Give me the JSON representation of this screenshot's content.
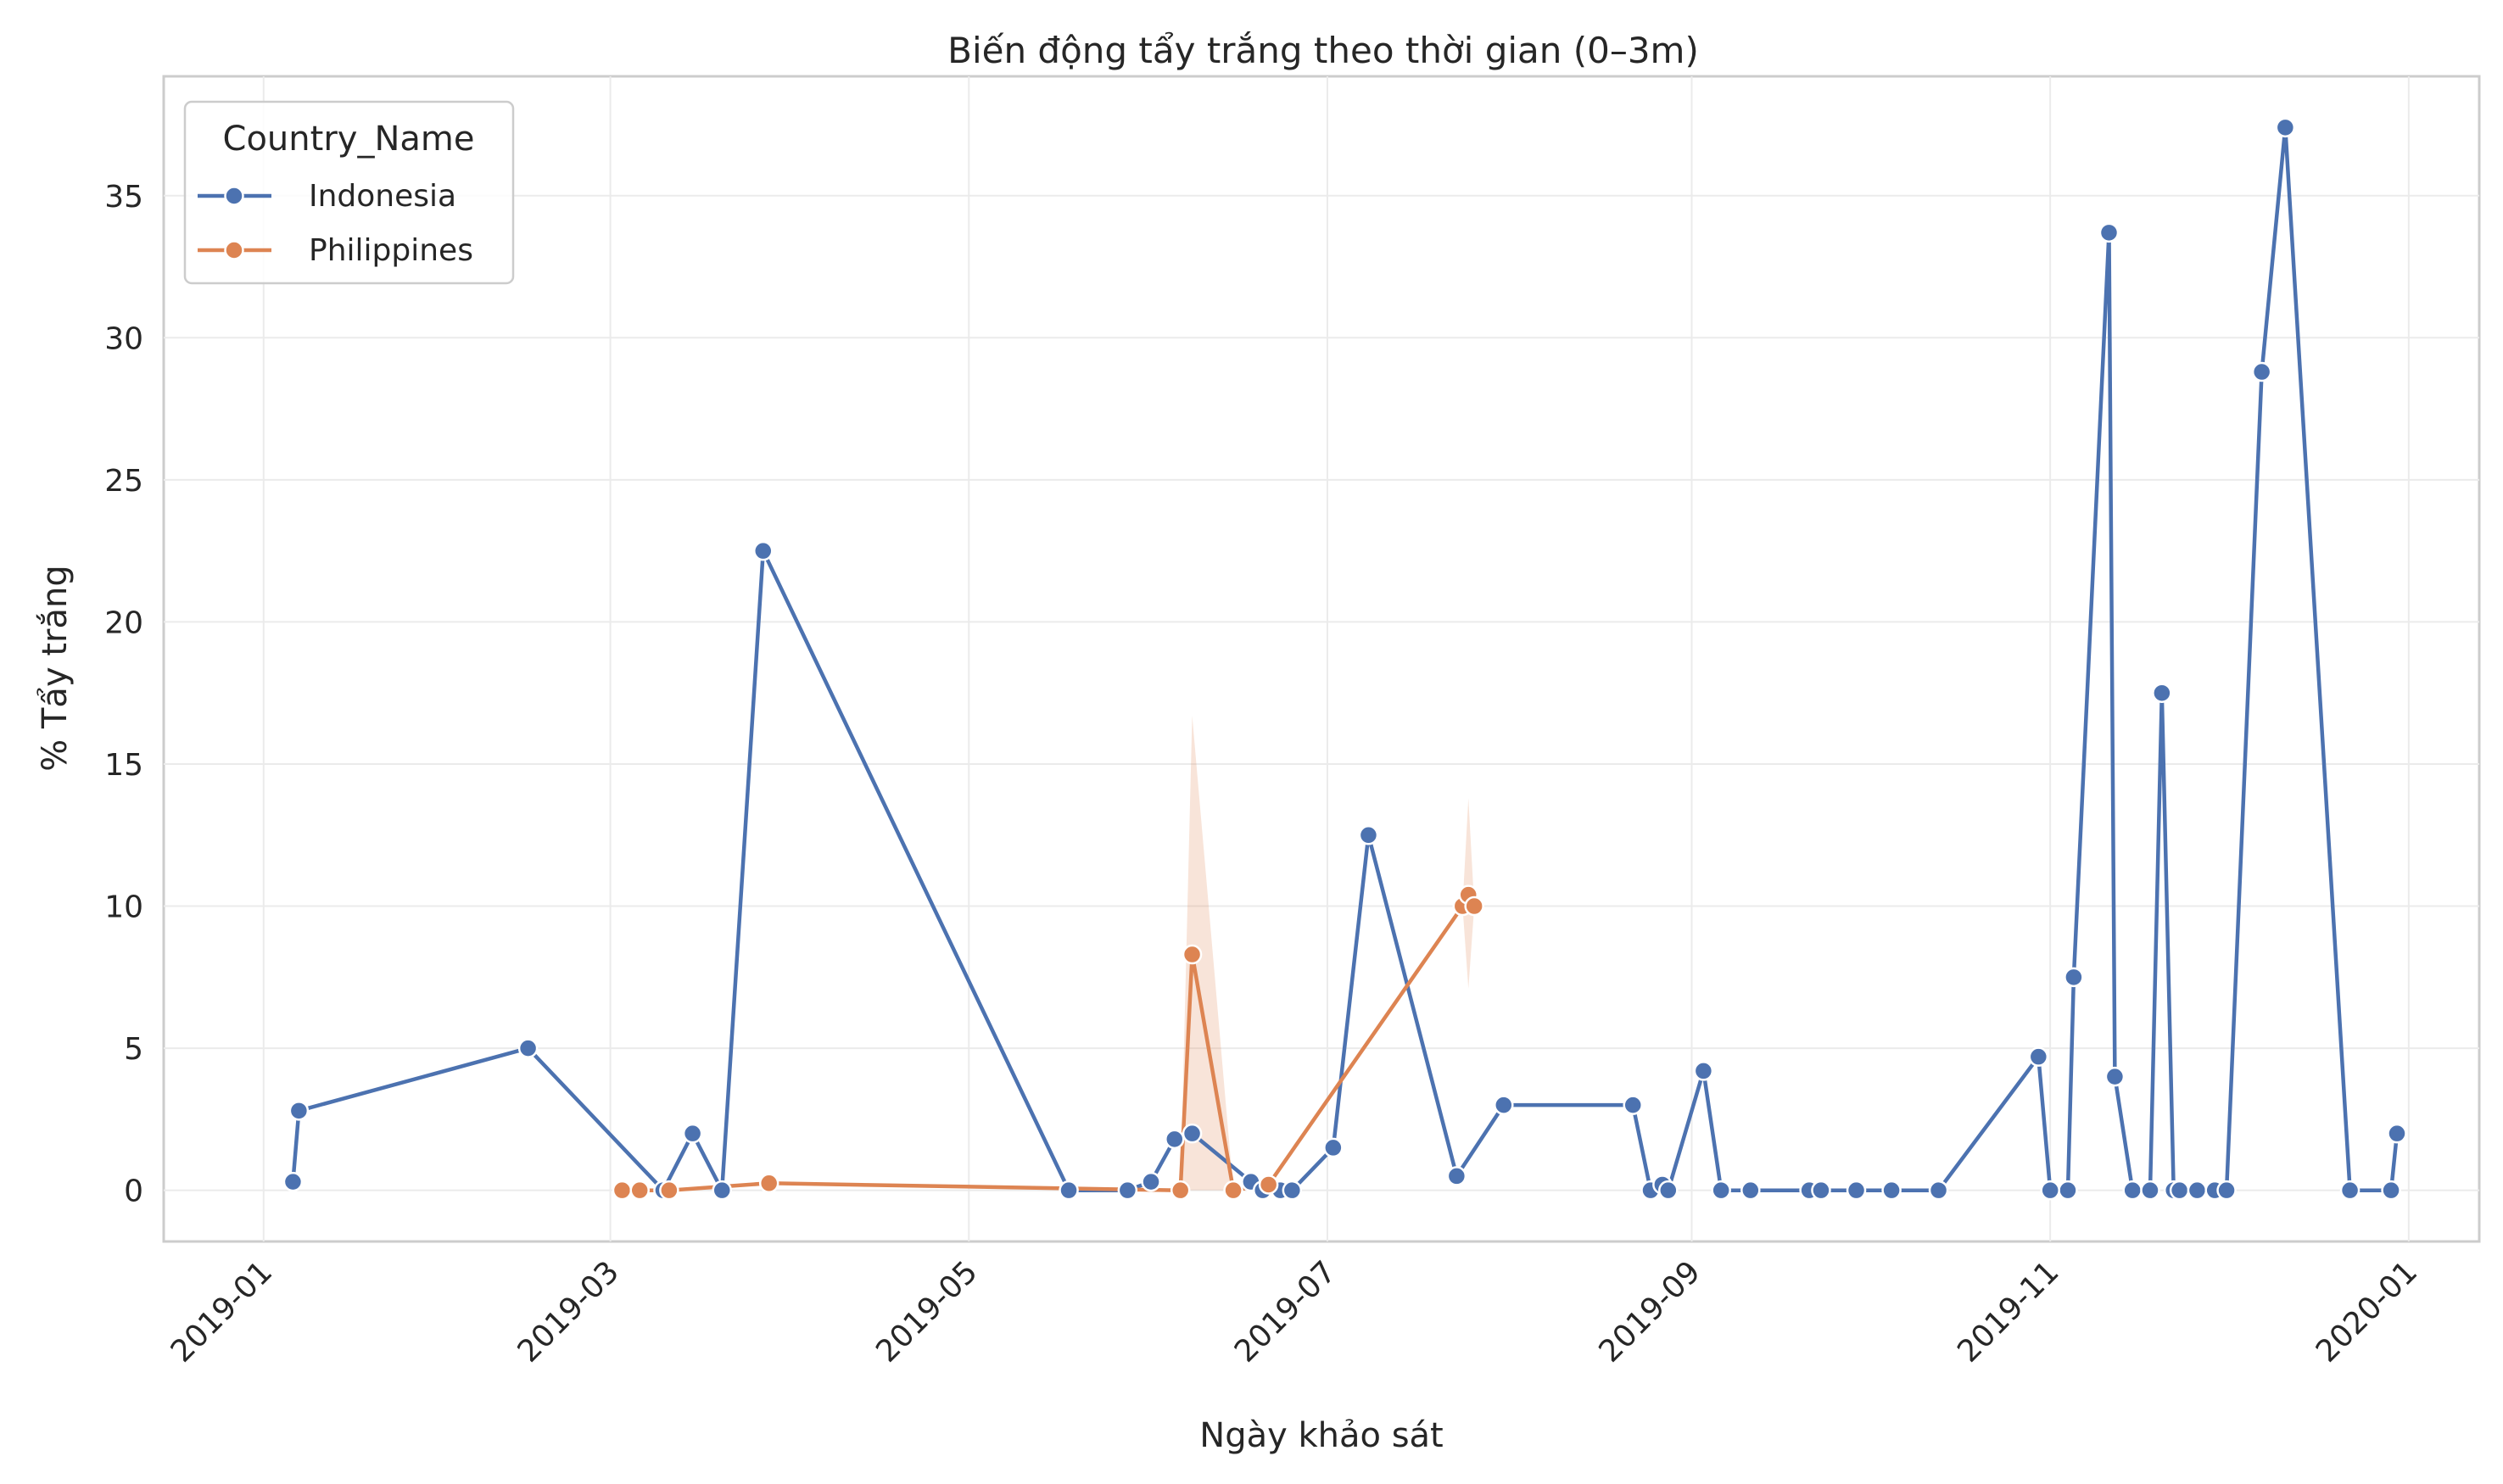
{
  "chart_data": {
    "type": "line",
    "title": "Biến động tẩy trắng theo thời gian (0–3m)",
    "xlabel": "Ngày khảo sát",
    "ylabel": "% Tẩy trắng",
    "xlim": [
      "2018-12-15",
      "2020-01-13"
    ],
    "ylim": [
      -1.8,
      39.2
    ],
    "x_ticks": [
      "2019-01-01",
      "2019-03-01",
      "2019-05-01",
      "2019-07-01",
      "2019-09-01",
      "2019-11-01",
      "2020-01-01"
    ],
    "x_tick_labels": [
      "2019-01",
      "2019-03",
      "2019-05",
      "2019-07",
      "2019-09",
      "2019-11",
      "2020-01"
    ],
    "y_ticks": [
      0,
      5,
      10,
      15,
      20,
      25,
      30,
      35
    ],
    "y_tick_labels": [
      "0",
      "5",
      "10",
      "15",
      "20",
      "25",
      "30",
      "35"
    ],
    "grid": true,
    "legend": {
      "title": "Country_Name",
      "position": "top-left"
    },
    "series": [
      {
        "name": "Indonesia",
        "color": "#4c72b0",
        "points": [
          [
            "2019-01-06",
            0.3
          ],
          [
            "2019-01-07",
            2.8
          ],
          [
            "2019-02-15",
            5.0
          ],
          [
            "2019-03-10",
            0.0
          ],
          [
            "2019-03-15",
            2.0
          ],
          [
            "2019-03-20",
            0.0
          ],
          [
            "2019-03-27",
            22.5
          ],
          [
            "2019-05-18",
            0.0
          ],
          [
            "2019-05-28",
            0.0
          ],
          [
            "2019-06-01",
            0.3
          ],
          [
            "2019-06-05",
            1.8
          ],
          [
            "2019-06-08",
            2.0
          ],
          [
            "2019-06-18",
            0.3
          ],
          [
            "2019-06-20",
            0.0
          ],
          [
            "2019-06-23",
            0.0
          ],
          [
            "2019-06-25",
            0.0
          ],
          [
            "2019-07-02",
            1.5
          ],
          [
            "2019-07-08",
            12.5
          ],
          [
            "2019-07-23",
            0.5
          ],
          [
            "2019-07-31",
            3.0
          ],
          [
            "2019-08-22",
            3.0
          ],
          [
            "2019-08-25",
            0.0
          ],
          [
            "2019-08-27",
            0.2
          ],
          [
            "2019-08-28",
            0.0
          ],
          [
            "2019-09-03",
            4.2
          ],
          [
            "2019-09-06",
            0.0
          ],
          [
            "2019-09-11",
            0.0
          ],
          [
            "2019-09-21",
            0.0
          ],
          [
            "2019-09-23",
            0.0
          ],
          [
            "2019-09-29",
            0.0
          ],
          [
            "2019-10-05",
            0.0
          ],
          [
            "2019-10-13",
            0.0
          ],
          [
            "2019-11-04",
            0.0
          ],
          [
            "2019-10-30",
            4.7
          ],
          [
            "2019-11-01",
            0.0
          ],
          [
            "2019-11-05",
            7.5
          ],
          [
            "2019-11-11",
            33.7
          ],
          [
            "2019-11-12",
            4.0
          ],
          [
            "2019-11-15",
            0.0
          ],
          [
            "2019-11-18",
            0.0
          ],
          [
            "2019-11-20",
            17.5
          ],
          [
            "2019-11-22",
            0.0
          ],
          [
            "2019-11-23",
            0.0
          ],
          [
            "2019-11-26",
            0.0
          ],
          [
            "2019-11-29",
            0.0
          ],
          [
            "2019-12-01",
            0.0
          ],
          [
            "2019-12-07",
            28.8
          ],
          [
            "2019-12-11",
            37.4
          ],
          [
            "2019-12-22",
            0.0
          ],
          [
            "2019-12-29",
            0.0
          ],
          [
            "2019-12-30",
            2.0
          ]
        ]
      },
      {
        "name": "Philippines",
        "color": "#dd8452",
        "points": [
          [
            "2019-03-03",
            0.0
          ],
          [
            "2019-03-06",
            0.0
          ],
          [
            "2019-03-11",
            0.0
          ],
          [
            "2019-03-28",
            0.25
          ],
          [
            "2019-06-06",
            0.0
          ],
          [
            "2019-06-08",
            8.3
          ],
          [
            "2019-06-15",
            0.0
          ],
          [
            "2019-06-21",
            0.2
          ],
          [
            "2019-07-24",
            10.0
          ],
          [
            "2019-07-25",
            10.4
          ],
          [
            "2019-07-26",
            10.0
          ]
        ],
        "ci_band": [
          [
            "2019-06-06",
            0.0,
            0.0
          ],
          [
            "2019-06-08",
            0.0,
            16.7
          ],
          [
            "2019-06-15",
            0.0,
            0.0
          ],
          [
            "2019-06-21",
            0.2,
            0.2
          ],
          [
            "2019-07-24",
            10.0,
            10.0
          ],
          [
            "2019-07-25",
            7.1,
            13.8
          ],
          [
            "2019-07-26",
            10.0,
            10.0
          ]
        ]
      }
    ]
  }
}
